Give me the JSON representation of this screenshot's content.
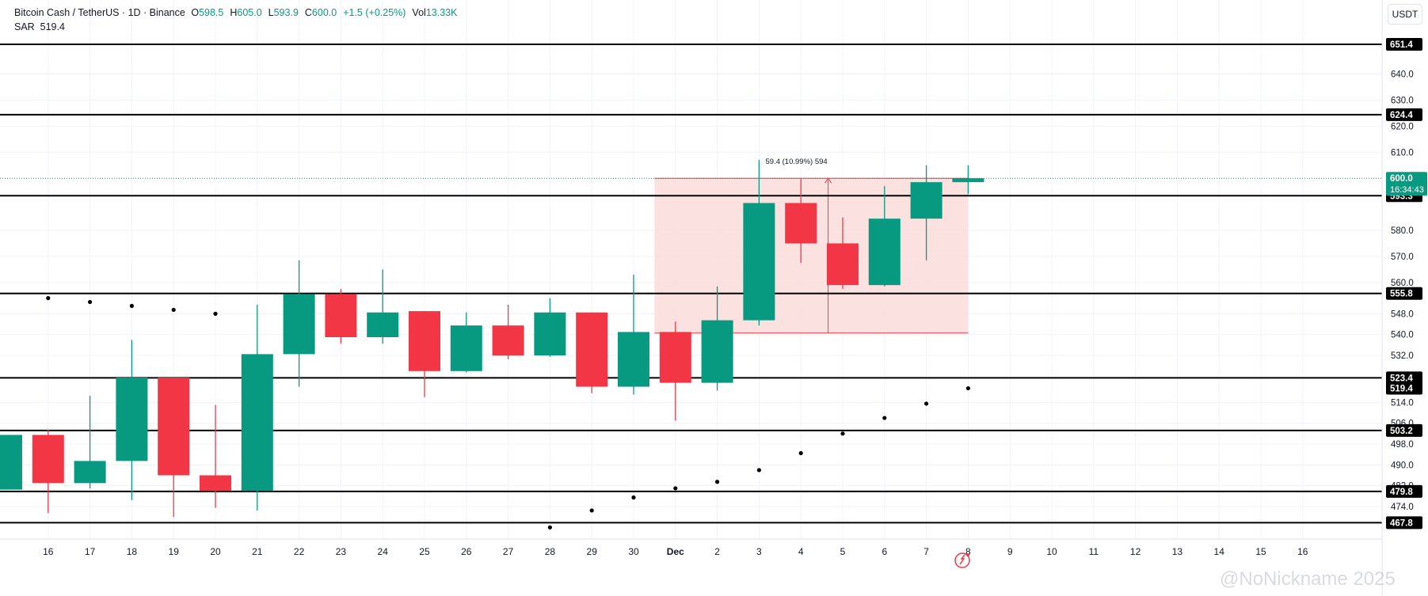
{
  "header": {
    "symbol": "Bitcoin Cash / TetherUS · 1D · Binance",
    "open_label": "O",
    "open": "598.5",
    "high_label": "H",
    "high": "605.0",
    "low_label": "L",
    "low": "593.9",
    "close_label": "C",
    "close": "600.0",
    "change": "+1.5 (+0.25%)",
    "vol_label": "Vol",
    "vol": "13.33K",
    "indicator_label": "SAR",
    "indicator_value": "519.4"
  },
  "currency_button": "USDT",
  "watermark": "@NoNickname 2025",
  "chart_data": {
    "type": "candlestick",
    "title": "Bitcoin Cash / TetherUS · 1D · Binance",
    "ylim": [
      464,
      660
    ],
    "y_ticks": [
      "474.0",
      "482.0",
      "490.0",
      "498.0",
      "506.0",
      "514.0",
      "532.0",
      "540.0",
      "548.0",
      "560.0",
      "570.0",
      "580.0",
      "610.0",
      "620.0",
      "630.0",
      "640.0"
    ],
    "x_labels": [
      {
        "label": "16",
        "i": 1
      },
      {
        "label": "17",
        "i": 2
      },
      {
        "label": "18",
        "i": 3
      },
      {
        "label": "19",
        "i": 4
      },
      {
        "label": "20",
        "i": 5
      },
      {
        "label": "21",
        "i": 6
      },
      {
        "label": "22",
        "i": 7
      },
      {
        "label": "23",
        "i": 8
      },
      {
        "label": "24",
        "i": 9
      },
      {
        "label": "25",
        "i": 10
      },
      {
        "label": "26",
        "i": 11
      },
      {
        "label": "27",
        "i": 12
      },
      {
        "label": "28",
        "i": 13
      },
      {
        "label": "29",
        "i": 14
      },
      {
        "label": "30",
        "i": 15
      },
      {
        "label": "Dec",
        "i": 16
      },
      {
        "label": "2",
        "i": 17
      },
      {
        "label": "3",
        "i": 18
      },
      {
        "label": "4",
        "i": 19
      },
      {
        "label": "5",
        "i": 20
      },
      {
        "label": "6",
        "i": 21
      },
      {
        "label": "7",
        "i": 22
      },
      {
        "label": "8",
        "i": 23
      },
      {
        "label": "9",
        "i": 24
      },
      {
        "label": "10",
        "i": 25
      },
      {
        "label": "11",
        "i": 26
      },
      {
        "label": "12",
        "i": 27
      },
      {
        "label": "13",
        "i": 28
      },
      {
        "label": "14",
        "i": 29
      },
      {
        "label": "15",
        "i": 30
      },
      {
        "label": "16",
        "i": 31
      }
    ],
    "candles": [
      {
        "i": 0,
        "o": 480.5,
        "h": 501.5,
        "l": 480.5,
        "c": 501.5
      },
      {
        "i": 1,
        "o": 501.5,
        "h": 503.5,
        "l": 471.5,
        "c": 483.0
      },
      {
        "i": 2,
        "o": 483.0,
        "h": 516.5,
        "l": 481.0,
        "c": 491.5
      },
      {
        "i": 3,
        "o": 491.5,
        "h": 538.0,
        "l": 476.5,
        "c": 523.5
      },
      {
        "i": 4,
        "o": 523.5,
        "h": 523.5,
        "l": 470.0,
        "c": 486.0
      },
      {
        "i": 5,
        "o": 486.0,
        "h": 513.0,
        "l": 473.5,
        "c": 480.0
      },
      {
        "i": 6,
        "o": 480.0,
        "h": 551.5,
        "l": 472.5,
        "c": 532.5
      },
      {
        "i": 7,
        "o": 532.5,
        "h": 568.5,
        "l": 520.0,
        "c": 555.5
      },
      {
        "i": 8,
        "o": 555.5,
        "h": 557.5,
        "l": 536.5,
        "c": 539.0
      },
      {
        "i": 9,
        "o": 539.0,
        "h": 565.0,
        "l": 536.5,
        "c": 548.5
      },
      {
        "i": 10,
        "o": 549.0,
        "h": 549.0,
        "l": 516.0,
        "c": 526.0
      },
      {
        "i": 11,
        "o": 526.0,
        "h": 548.5,
        "l": 525.5,
        "c": 543.5
      },
      {
        "i": 12,
        "o": 543.5,
        "h": 551.5,
        "l": 530.5,
        "c": 532.0
      },
      {
        "i": 13,
        "o": 532.0,
        "h": 554.0,
        "l": 531.5,
        "c": 548.5
      },
      {
        "i": 14,
        "o": 548.5,
        "h": 548.5,
        "l": 517.5,
        "c": 520.0
      },
      {
        "i": 15,
        "o": 520.0,
        "h": 563.0,
        "l": 517.0,
        "c": 541.0
      },
      {
        "i": 16,
        "o": 541.0,
        "h": 545.0,
        "l": 507.0,
        "c": 521.5
      },
      {
        "i": 17,
        "o": 521.5,
        "h": 558.5,
        "l": 518.5,
        "c": 545.5
      },
      {
        "i": 18,
        "o": 545.5,
        "h": 607.0,
        "l": 543.5,
        "c": 590.5
      },
      {
        "i": 19,
        "o": 590.5,
        "h": 600.0,
        "l": 567.5,
        "c": 575.0
      },
      {
        "i": 20,
        "o": 575.0,
        "h": 585.0,
        "l": 557.5,
        "c": 559.0
      },
      {
        "i": 21,
        "o": 559.0,
        "h": 597.0,
        "l": 558.5,
        "c": 584.5
      },
      {
        "i": 22,
        "o": 584.5,
        "h": 605.0,
        "l": 568.5,
        "c": 598.5
      },
      {
        "i": 23,
        "o": 598.5,
        "h": 605.0,
        "l": 593.9,
        "c": 600.0
      }
    ],
    "sar": [
      {
        "i": 1,
        "v": 554.0
      },
      {
        "i": 2,
        "v": 552.5
      },
      {
        "i": 3,
        "v": 551.0
      },
      {
        "i": 4,
        "v": 549.5
      },
      {
        "i": 5,
        "v": 548.0
      },
      {
        "i": 13,
        "v": 466.0
      },
      {
        "i": 14,
        "v": 472.5
      },
      {
        "i": 15,
        "v": 477.5
      },
      {
        "i": 16,
        "v": 481.0
      },
      {
        "i": 17,
        "v": 483.5
      },
      {
        "i": 18,
        "v": 488.0
      },
      {
        "i": 19,
        "v": 494.5
      },
      {
        "i": 20,
        "v": 502.0
      },
      {
        "i": 21,
        "v": 508.0
      },
      {
        "i": 22,
        "v": 513.5
      },
      {
        "i": 23,
        "v": 519.4
      }
    ],
    "horizontal_levels": [
      {
        "value": 651.4,
        "label": "651.4"
      },
      {
        "value": 624.4,
        "label": "624.4"
      },
      {
        "value": 593.3,
        "label": "593.3"
      },
      {
        "value": 555.8,
        "label": "555.8"
      },
      {
        "value": 523.4,
        "label": "523.4"
      },
      {
        "value": 503.2,
        "label": "503.2"
      },
      {
        "value": 479.8,
        "label": "479.8"
      },
      {
        "value": 467.8,
        "label": "467.8"
      }
    ],
    "sar_label": "519.4",
    "current_price": {
      "value": 600.0,
      "label": "600.0",
      "countdown": "16:34:43"
    },
    "range_measure": {
      "from_i": 16,
      "to_i": 23,
      "low": 540.6,
      "high": 600.0,
      "label": "59.4 (10.99%) 594",
      "arrow_i": 20
    },
    "colors": {
      "up": "#089981",
      "down": "#f23645",
      "sar": "#000000",
      "level": "#000000",
      "range_fill": "#fcdcdc",
      "range_line": "#f23645",
      "grid": "#f0f3fa"
    }
  }
}
